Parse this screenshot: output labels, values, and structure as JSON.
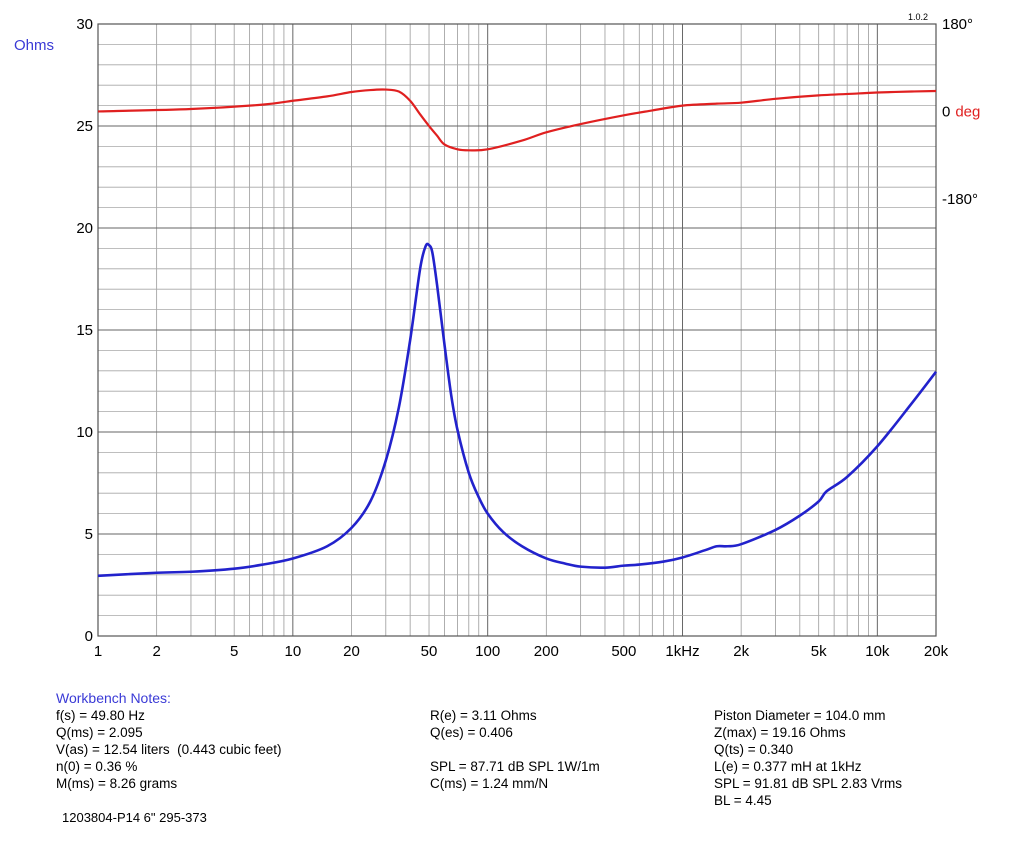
{
  "version": "1.0.2",
  "chart_data": {
    "type": "line",
    "x_scale": "log",
    "xlim": [
      1,
      20000
    ],
    "x_ticks": [
      {
        "value": 1,
        "label": "1"
      },
      {
        "value": 2,
        "label": "2"
      },
      {
        "value": 5,
        "label": "5"
      },
      {
        "value": 10,
        "label": "10"
      },
      {
        "value": 20,
        "label": "20"
      },
      {
        "value": 50,
        "label": "50"
      },
      {
        "value": 100,
        "label": "100"
      },
      {
        "value": 200,
        "label": "200"
      },
      {
        "value": 500,
        "label": "500"
      },
      {
        "value": 1000,
        "label": "1kHz"
      },
      {
        "value": 2000,
        "label": "2k"
      },
      {
        "value": 5000,
        "label": "5k"
      },
      {
        "value": 10000,
        "label": "10k"
      },
      {
        "value": 20000,
        "label": "20k"
      }
    ],
    "y_left": {
      "label": "Ohms",
      "lim": [
        0,
        30
      ],
      "ticks": [
        "0",
        "5",
        "10",
        "15",
        "20",
        "25",
        "30"
      ]
    },
    "y_right": {
      "ticks": [
        {
          "value": 180,
          "label": "180°"
        },
        {
          "value": 0,
          "label": "0",
          "suffix": "deg"
        },
        {
          "value": -180,
          "label": "-180°"
        }
      ],
      "lim": [
        -1080,
        180
      ]
    },
    "grid": true,
    "series": [
      {
        "name": "Ohms",
        "axis": "left",
        "color": "#2222cc",
        "points": [
          [
            1,
            2.95
          ],
          [
            2,
            3.1
          ],
          [
            3,
            3.15
          ],
          [
            5,
            3.3
          ],
          [
            7,
            3.5
          ],
          [
            10,
            3.8
          ],
          [
            15,
            4.4
          ],
          [
            20,
            5.3
          ],
          [
            25,
            6.6
          ],
          [
            30,
            8.6
          ],
          [
            35,
            11.2
          ],
          [
            40,
            14.5
          ],
          [
            45,
            18.0
          ],
          [
            48,
            19.1
          ],
          [
            50,
            19.16
          ],
          [
            52,
            18.8
          ],
          [
            55,
            17.2
          ],
          [
            60,
            14.3
          ],
          [
            65,
            11.8
          ],
          [
            70,
            10.1
          ],
          [
            80,
            8.0
          ],
          [
            90,
            6.8
          ],
          [
            100,
            6.0
          ],
          [
            120,
            5.1
          ],
          [
            150,
            4.4
          ],
          [
            200,
            3.8
          ],
          [
            250,
            3.55
          ],
          [
            300,
            3.4
          ],
          [
            400,
            3.35
          ],
          [
            500,
            3.45
          ],
          [
            600,
            3.5
          ],
          [
            800,
            3.65
          ],
          [
            1000,
            3.85
          ],
          [
            1300,
            4.2
          ],
          [
            1500,
            4.4
          ],
          [
            1700,
            4.4
          ],
          [
            2000,
            4.5
          ],
          [
            3000,
            5.2
          ],
          [
            4000,
            5.9
          ],
          [
            5000,
            6.6
          ],
          [
            5500,
            7.1
          ],
          [
            7000,
            7.8
          ],
          [
            10000,
            9.3
          ],
          [
            15000,
            11.4
          ],
          [
            20000,
            12.95
          ]
        ]
      },
      {
        "name": "deg",
        "axis": "right",
        "color": "#e02020",
        "points": [
          [
            1,
            0
          ],
          [
            3,
            5
          ],
          [
            7,
            14
          ],
          [
            10,
            22
          ],
          [
            15,
            31
          ],
          [
            20,
            40
          ],
          [
            25,
            44
          ],
          [
            30,
            45
          ],
          [
            35,
            41
          ],
          [
            40,
            22
          ],
          [
            45,
            -6
          ],
          [
            50,
            -30
          ],
          [
            55,
            -50
          ],
          [
            60,
            -68
          ],
          [
            70,
            -78
          ],
          [
            80,
            -80
          ],
          [
            100,
            -78
          ],
          [
            150,
            -60
          ],
          [
            200,
            -43
          ],
          [
            300,
            -26
          ],
          [
            500,
            -8
          ],
          [
            700,
            2
          ],
          [
            1000,
            12
          ],
          [
            1500,
            16
          ],
          [
            2000,
            18
          ],
          [
            3000,
            26
          ],
          [
            5000,
            33
          ],
          [
            8000,
            37
          ],
          [
            10000,
            39
          ],
          [
            15000,
            41
          ],
          [
            20000,
            42
          ]
        ]
      }
    ]
  },
  "notes": {
    "title": "Workbench Notes:",
    "col1": [
      "f(s) = 49.80 Hz",
      "Q(ms) = 2.095",
      "V(as) = 12.54 liters  (0.443 cubic feet)",
      "n(0) = 0.36 %",
      "M(ms) = 8.26 grams"
    ],
    "col2": [
      "R(e) = 3.11 Ohms",
      "Q(es) = 0.406",
      "",
      "SPL = 87.71 dB SPL 1W/1m",
      "C(ms) = 1.24 mm/N"
    ],
    "col3": [
      "Piston Diameter = 104.0 mm",
      "Z(max) = 19.16 Ohms",
      "Q(ts) = 0.340",
      "L(e) = 0.377 mH at 1kHz",
      "SPL = 91.81 dB SPL 2.83 Vrms",
      "BL = 4.45"
    ]
  },
  "part_number": "1203804-P14 6\" 295-373"
}
